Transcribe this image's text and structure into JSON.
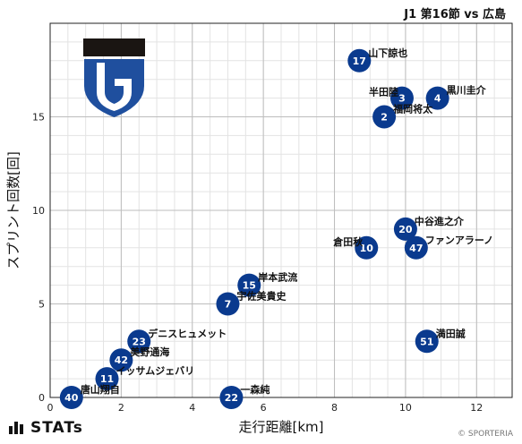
{
  "header": {
    "title": "J1 第16節 vs 広島"
  },
  "footer": {
    "brand": "STATs",
    "copyright": "© SPORTERIA"
  },
  "colors": {
    "marker": "#0a3a8e",
    "logo_dark": "#1a1512",
    "logo_blue": "#1f4f9e"
  },
  "logo": {
    "name": "team-crest"
  },
  "chart_data": {
    "type": "scatter",
    "xlabel": "走行距離[km]",
    "ylabel": "スプリント回数[回]",
    "xlim": [
      0,
      13
    ],
    "ylim": [
      0,
      20
    ],
    "xticks": [
      0,
      2,
      4,
      6,
      8,
      10,
      12
    ],
    "yticks": [
      0,
      5,
      10,
      15
    ],
    "grid": true,
    "points": [
      {
        "number": "17",
        "name": "山下諒也",
        "x": 8.7,
        "y": 18
      },
      {
        "number": "3",
        "name": "半田陸",
        "x": 9.9,
        "y": 16
      },
      {
        "number": "4",
        "name": "黒川圭介",
        "x": 10.9,
        "y": 16
      },
      {
        "number": "2",
        "name": "福岡将太",
        "x": 9.4,
        "y": 15
      },
      {
        "number": "20",
        "name": "中谷進之介",
        "x": 10.0,
        "y": 9
      },
      {
        "number": "10",
        "name": "倉田秋",
        "x": 8.9,
        "y": 8
      },
      {
        "number": "47",
        "name": "ファンアラーノ",
        "x": 10.3,
        "y": 8
      },
      {
        "number": "15",
        "name": "岸本武流",
        "x": 5.6,
        "y": 6
      },
      {
        "number": "7",
        "name": "宇佐美貴史",
        "x": 5.0,
        "y": 5
      },
      {
        "number": "51",
        "name": "満田誠",
        "x": 10.6,
        "y": 3
      },
      {
        "number": "23",
        "name": "デニスヒュメット",
        "x": 2.5,
        "y": 3
      },
      {
        "number": "42",
        "name": "美野通海",
        "x": 2.0,
        "y": 2
      },
      {
        "number": "11",
        "name": "イッサムジェバリ",
        "x": 1.6,
        "y": 1
      },
      {
        "number": "40",
        "name": "唐山翔自",
        "x": 0.6,
        "y": 0
      },
      {
        "number": "22",
        "name": "一森純",
        "x": 5.1,
        "y": 0
      }
    ]
  }
}
